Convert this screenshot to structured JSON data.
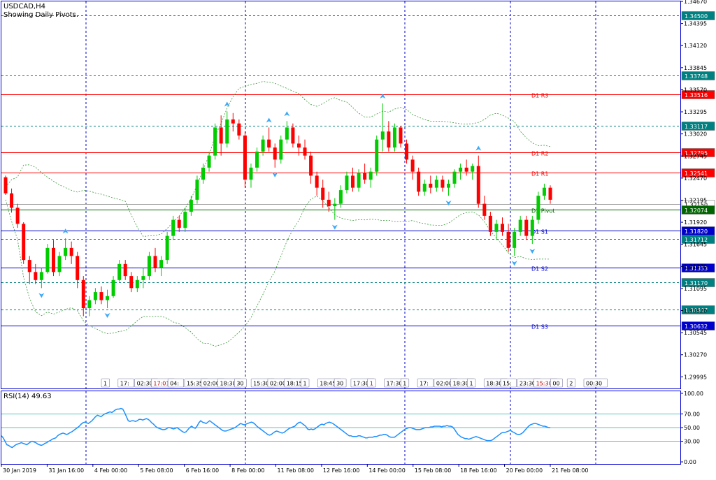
{
  "header": {
    "symbol": "USDCAD,H4",
    "subtitle": "Showing Daily Pivots."
  },
  "colors": {
    "bull": "#00cc00",
    "bear": "#ff0000",
    "bands": "#3c9a3c",
    "fractal": "#3fa9f5",
    "resistance": "#ff0000",
    "support": "#0000cc",
    "pivot": "#006400",
    "dashed": "#008080",
    "rsi": "#1e90ff",
    "frame": "#0000cc"
  },
  "chart_data": [
    {
      "type": "candlestick",
      "title": "USDCAD,H4",
      "subtitle": "Showing Daily Pivots.",
      "ylim": [
        1.2985,
        1.3467
      ],
      "price_ticks": [
        "1.34670",
        "1.34395",
        "1.34120",
        "1.33845",
        "1.33570",
        "1.33295",
        "1.33020",
        "1.32745",
        "1.32470",
        "1.32195",
        "1.31920",
        "1.31645",
        "1.31370",
        "1.31095",
        "1.30820",
        "1.30545",
        "1.30270",
        "1.29995"
      ],
      "x_tick_labels": [
        "30 Jan 2019",
        "31 Jan 16:00",
        "4 Feb 00:00",
        "5 Feb 08:00",
        "6 Feb 16:00",
        "8 Feb 00:00",
        "11 Feb 08:00",
        "12 Feb 16:00",
        "14 Feb 00:00",
        "15 Feb 08:00",
        "18 Feb 16:00",
        "20 Feb 00:00",
        "21 Feb 08:00"
      ],
      "vertical_separators": [
        "4 Feb",
        "8 Feb",
        "12 Feb",
        "15 Feb",
        "20 Feb",
        "22 Feb"
      ],
      "candles": [
        [
          1.3248,
          1.325,
          1.3226,
          1.3228
        ],
        [
          1.3228,
          1.3234,
          1.3204,
          1.321
        ],
        [
          1.321,
          1.3215,
          1.3185,
          1.319
        ],
        [
          1.319,
          1.3192,
          1.314,
          1.3145
        ],
        [
          1.3145,
          1.315,
          1.3115,
          1.313
        ],
        [
          1.313,
          1.314,
          1.3115,
          1.312
        ],
        [
          1.312,
          1.3135,
          1.311,
          1.313
        ],
        [
          1.313,
          1.3165,
          1.3128,
          1.316
        ],
        [
          1.316,
          1.317,
          1.3125,
          1.313
        ],
        [
          1.313,
          1.3155,
          1.3125,
          1.315
        ],
        [
          1.315,
          1.3172,
          1.3145,
          1.316
        ],
        [
          1.316,
          1.3168,
          1.314,
          1.315
        ],
        [
          1.315,
          1.3155,
          1.311,
          1.312
        ],
        [
          1.312,
          1.3125,
          1.3075,
          1.3085
        ],
        [
          1.3085,
          1.31,
          1.3075,
          1.3095
        ],
        [
          1.3095,
          1.311,
          1.309,
          1.3105
        ],
        [
          1.3105,
          1.3112,
          1.309,
          1.3095
        ],
        [
          1.3095,
          1.3108,
          1.3085,
          1.31
        ],
        [
          1.31,
          1.3125,
          1.3098,
          1.312
        ],
        [
          1.312,
          1.3145,
          1.3118,
          1.314
        ],
        [
          1.314,
          1.3145,
          1.312,
          1.3125
        ],
        [
          1.3125,
          1.313,
          1.3105,
          1.311
        ],
        [
          1.311,
          1.3125,
          1.3105,
          1.312
        ],
        [
          1.312,
          1.3135,
          1.311,
          1.3125
        ],
        [
          1.3125,
          1.3155,
          1.312,
          1.315
        ],
        [
          1.315,
          1.316,
          1.313,
          1.3135
        ],
        [
          1.3135,
          1.315,
          1.3125,
          1.3145
        ],
        [
          1.3145,
          1.318,
          1.314,
          1.3175
        ],
        [
          1.3175,
          1.32,
          1.317,
          1.3195
        ],
        [
          1.3195,
          1.32,
          1.318,
          1.3185
        ],
        [
          1.3185,
          1.321,
          1.318,
          1.3205
        ],
        [
          1.3205,
          1.3225,
          1.32,
          1.322
        ],
        [
          1.322,
          1.325,
          1.3215,
          1.3245
        ],
        [
          1.3245,
          1.3265,
          1.324,
          1.326
        ],
        [
          1.326,
          1.328,
          1.3255,
          1.3275
        ],
        [
          1.3275,
          1.3315,
          1.327,
          1.331
        ],
        [
          1.331,
          1.3325,
          1.3275,
          1.329
        ],
        [
          1.329,
          1.333,
          1.3285,
          1.332
        ],
        [
          1.332,
          1.3328,
          1.3305,
          1.3315
        ],
        [
          1.3315,
          1.332,
          1.3295,
          1.33
        ],
        [
          1.33,
          1.3305,
          1.3235,
          1.3245
        ],
        [
          1.3245,
          1.3265,
          1.3235,
          1.326
        ],
        [
          1.326,
          1.3285,
          1.3255,
          1.328
        ],
        [
          1.328,
          1.33,
          1.3275,
          1.3295
        ],
        [
          1.3295,
          1.331,
          1.328,
          1.3285
        ],
        [
          1.3285,
          1.329,
          1.326,
          1.327
        ],
        [
          1.327,
          1.33,
          1.3265,
          1.3295
        ],
        [
          1.3295,
          1.3318,
          1.329,
          1.331
        ],
        [
          1.331,
          1.3315,
          1.3285,
          1.329
        ],
        [
          1.329,
          1.33,
          1.3275,
          1.3285
        ],
        [
          1.3285,
          1.3295,
          1.327,
          1.3275
        ],
        [
          1.3275,
          1.328,
          1.324,
          1.325
        ],
        [
          1.325,
          1.3255,
          1.3225,
          1.3235
        ],
        [
          1.3235,
          1.3245,
          1.321,
          1.322
        ],
        [
          1.322,
          1.323,
          1.3205,
          1.3212
        ],
        [
          1.3212,
          1.3222,
          1.3195,
          1.3215
        ],
        [
          1.3215,
          1.3238,
          1.321,
          1.3232
        ],
        [
          1.3232,
          1.3255,
          1.3228,
          1.325
        ],
        [
          1.325,
          1.326,
          1.323,
          1.3235
        ],
        [
          1.3235,
          1.3258,
          1.323,
          1.3253
        ],
        [
          1.3253,
          1.3265,
          1.324,
          1.3245
        ],
        [
          1.3245,
          1.326,
          1.3235,
          1.3255
        ],
        [
          1.3255,
          1.33,
          1.325,
          1.3295
        ],
        [
          1.3295,
          1.334,
          1.328,
          1.3305
        ],
        [
          1.3305,
          1.3318,
          1.328,
          1.3285
        ],
        [
          1.3285,
          1.3315,
          1.328,
          1.331
        ],
        [
          1.331,
          1.3312,
          1.3285,
          1.329
        ],
        [
          1.329,
          1.3295,
          1.3265,
          1.327
        ],
        [
          1.327,
          1.3275,
          1.3245,
          1.3255
        ],
        [
          1.3255,
          1.326,
          1.3225,
          1.323
        ],
        [
          1.323,
          1.3245,
          1.3225,
          1.324
        ],
        [
          1.324,
          1.325,
          1.3228,
          1.3235
        ],
        [
          1.3235,
          1.325,
          1.323,
          1.3245
        ],
        [
          1.3245,
          1.325,
          1.323,
          1.3235
        ],
        [
          1.3235,
          1.3245,
          1.3225,
          1.324
        ],
        [
          1.324,
          1.3258,
          1.3235,
          1.3255
        ],
        [
          1.3255,
          1.3265,
          1.3245,
          1.326
        ],
        [
          1.326,
          1.327,
          1.325,
          1.3255
        ],
        [
          1.3255,
          1.3265,
          1.3245,
          1.3262
        ],
        [
          1.3262,
          1.3275,
          1.321,
          1.3215
        ],
        [
          1.3215,
          1.3225,
          1.3195,
          1.32
        ],
        [
          1.32,
          1.3205,
          1.3175,
          1.318
        ],
        [
          1.318,
          1.3195,
          1.317,
          1.319
        ],
        [
          1.319,
          1.3198,
          1.3175,
          1.318
        ],
        [
          1.318,
          1.319,
          1.3155,
          1.316
        ],
        [
          1.316,
          1.3185,
          1.315,
          1.318
        ],
        [
          1.318,
          1.32,
          1.3175,
          1.3195
        ],
        [
          1.3195,
          1.32,
          1.317,
          1.3175
        ],
        [
          1.3175,
          1.32,
          1.3165,
          1.3195
        ],
        [
          1.3195,
          1.323,
          1.319,
          1.3225
        ],
        [
          1.3225,
          1.324,
          1.322,
          1.3235
        ],
        [
          1.3235,
          1.3238,
          1.3215,
          1.322
        ]
      ],
      "price_levels": [
        {
          "label": "1.34500",
          "style": "dashed",
          "text": ""
        },
        {
          "label": "1.33748",
          "style": "dashed",
          "text": ""
        },
        {
          "label": "1.33516",
          "style": "resistance",
          "text": "D1 R3"
        },
        {
          "label": "1.33117",
          "style": "dashed",
          "text": ""
        },
        {
          "label": "1.32795",
          "style": "resistance",
          "text": "D1 R2"
        },
        {
          "label": "1.32541",
          "style": "resistance",
          "text": "D1 R1"
        },
        {
          "label": "1.32150",
          "style": "bid",
          "text": ""
        },
        {
          "label": "1.32074",
          "style": "pivot",
          "text": "D1 Pivot"
        },
        {
          "label": "1.31820",
          "style": "support",
          "text": "D1 S1"
        },
        {
          "label": "1.31712",
          "style": "dashed",
          "text": ""
        },
        {
          "label": "1.31353",
          "style": "support",
          "text": "D1 S2"
        },
        {
          "label": "1.31170",
          "style": "dashed",
          "text": ""
        },
        {
          "label": "1.30837",
          "style": "dashed",
          "text": ""
        },
        {
          "label": "1.30632",
          "style": "support",
          "text": "D1 S3"
        }
      ],
      "event_time_labels": [
        "1",
        "17:",
        "02:30",
        "17:01",
        "04:",
        "15:35",
        "02:00",
        "18:30",
        "30",
        "15:30",
        "02:00",
        "18:15",
        "1",
        "18:45",
        "30",
        "17:30",
        "1",
        "17:30",
        "1",
        "17:",
        "02:00",
        "18:30",
        "1",
        "18:30",
        "15:",
        "23:30",
        "15:30",
        "00",
        "2",
        "00:30"
      ]
    },
    {
      "type": "line",
      "title": "RSI(14) 49.63",
      "ylim": [
        -3,
        103
      ],
      "y_ticks": [
        "100.00",
        "70.00",
        "50.00",
        "30.00",
        "0.00"
      ],
      "levels": [
        70,
        50,
        30
      ],
      "values": [
        38,
        35,
        30,
        25,
        24,
        22,
        21,
        23,
        25,
        26,
        27,
        28,
        27,
        26,
        25,
        27,
        29,
        30,
        29,
        28,
        26,
        25,
        24,
        25,
        27,
        28,
        30,
        31,
        33,
        34,
        35,
        38,
        40,
        41,
        42,
        41,
        40,
        41,
        43,
        44,
        46,
        48,
        50,
        52,
        55,
        57,
        58,
        57,
        56,
        58,
        60,
        63,
        66,
        68,
        67,
        66,
        68,
        70,
        71,
        72,
        73,
        72,
        74,
        76,
        77,
        77,
        78,
        77,
        72,
        66,
        60,
        59,
        60,
        60,
        59,
        60,
        62,
        62,
        61,
        62,
        63,
        62,
        60,
        57,
        55,
        52,
        50,
        49,
        48,
        47,
        47,
        48,
        50,
        50,
        49,
        48,
        49,
        50,
        48,
        46,
        44,
        43,
        44,
        47,
        50,
        52,
        50,
        49,
        52,
        57,
        60,
        58,
        57,
        56,
        58,
        60,
        58,
        56,
        54,
        52,
        50,
        48,
        46,
        45,
        45,
        46,
        47,
        48,
        49,
        50,
        52,
        54,
        56,
        55,
        54,
        55,
        56,
        57,
        58,
        57,
        55,
        52,
        50,
        48,
        46,
        44,
        42,
        40,
        39,
        40,
        42,
        44,
        45,
        44,
        43,
        42,
        43,
        45,
        47,
        49,
        50,
        51,
        52,
        55,
        57,
        58,
        56,
        54,
        52,
        48,
        47,
        48,
        47,
        48,
        50,
        52,
        54,
        55,
        54,
        56,
        57,
        58,
        57,
        56,
        54,
        52,
        50,
        48,
        46,
        44,
        42,
        40,
        38,
        38,
        37,
        37,
        37,
        38,
        38,
        37,
        36,
        35,
        35,
        36,
        36,
        36,
        37,
        37,
        38,
        39,
        39,
        40,
        40,
        39,
        37,
        36,
        36,
        36,
        38,
        40,
        42,
        44,
        46,
        48,
        49,
        50,
        50,
        49,
        48,
        47,
        47,
        47,
        48,
        49,
        50,
        50,
        50,
        51,
        51,
        52,
        52,
        52,
        52,
        51,
        52,
        52,
        53,
        52,
        52,
        51,
        48,
        44,
        40,
        38,
        36,
        35,
        34,
        34,
        33,
        34,
        35,
        36,
        37,
        36,
        35,
        34,
        33,
        32,
        31,
        31,
        31,
        32,
        34,
        36,
        38,
        40,
        42,
        43,
        43,
        44,
        45,
        46,
        44,
        43,
        41,
        40,
        40,
        41,
        43,
        46,
        49,
        52,
        54,
        55,
        56,
        56,
        55,
        54,
        53,
        52,
        52,
        51,
        50,
        50
      ]
    }
  ]
}
